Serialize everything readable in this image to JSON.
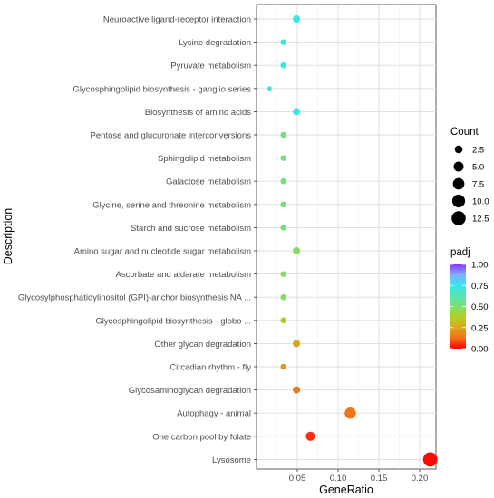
{
  "chart_data": {
    "type": "scatter",
    "xlabel": "GeneRatio",
    "ylabel": "Description",
    "xlim": [
      0.0,
      0.22
    ],
    "x_ticks": [
      "0.05",
      "0.10",
      "0.15",
      "0.20"
    ],
    "x_tick_values": [
      0.05,
      0.1,
      0.15,
      0.2
    ],
    "grid": true,
    "points": [
      {
        "label": "Neuroactive ligand-receptor interaction",
        "x": 0.049,
        "count": 2,
        "padj": 0.72
      },
      {
        "label": "Lysine degradation",
        "x": 0.033,
        "count": 1,
        "padj": 0.72
      },
      {
        "label": "Pyruvate metabolism",
        "x": 0.033,
        "count": 1,
        "padj": 0.72
      },
      {
        "label": "Glycosphingolipid biosynthesis - ganglio series",
        "x": 0.016,
        "count": 0.3,
        "padj": 0.72
      },
      {
        "label": "Biosynthesis of amino acids",
        "x": 0.049,
        "count": 2,
        "padj": 0.72
      },
      {
        "label": "Pentose and glucuronate interconversions",
        "x": 0.033,
        "count": 1,
        "padj": 0.52
      },
      {
        "label": "Sphingolipid metabolism",
        "x": 0.033,
        "count": 1,
        "padj": 0.52
      },
      {
        "label": "Galactose metabolism",
        "x": 0.033,
        "count": 1,
        "padj": 0.52
      },
      {
        "label": "Glycine, serine and threonine metabolism",
        "x": 0.033,
        "count": 1,
        "padj": 0.52
      },
      {
        "label": "Starch and sucrose metabolism",
        "x": 0.033,
        "count": 1,
        "padj": 0.52
      },
      {
        "label": "Amino sugar and nucleotide sugar metabolism",
        "x": 0.049,
        "count": 2,
        "padj": 0.48
      },
      {
        "label": "Ascorbate and aldarate metabolism",
        "x": 0.033,
        "count": 1,
        "padj": 0.48
      },
      {
        "label": "Glycosylphosphatidylinositol (GPI)-anchor biosynthesis NA ...",
        "x": 0.033,
        "count": 1,
        "padj": 0.48
      },
      {
        "label": "Glycosphingolipid biosynthesis - globo ...",
        "x": 0.033,
        "count": 1,
        "padj": 0.34
      },
      {
        "label": "Other glycan degradation",
        "x": 0.049,
        "count": 2,
        "padj": 0.24
      },
      {
        "label": "Circadian rhythm - fly",
        "x": 0.033,
        "count": 1,
        "padj": 0.22
      },
      {
        "label": "Glycosaminoglycan degradation",
        "x": 0.049,
        "count": 2,
        "padj": 0.15
      },
      {
        "label": "Autophagy - animal",
        "x": 0.115,
        "count": 7,
        "padj": 0.14
      },
      {
        "label": "One carbon pool by folate",
        "x": 0.066,
        "count": 4,
        "padj": 0.05
      },
      {
        "label": "Lysosome",
        "x": 0.213,
        "count": 13,
        "padj": 0.01
      }
    ],
    "legend": {
      "size_title": "Count",
      "size_breaks": [
        {
          "label": "2.5",
          "value": 2.5
        },
        {
          "label": "5.0",
          "value": 5.0
        },
        {
          "label": "7.5",
          "value": 7.5
        },
        {
          "label": "10.0",
          "value": 10.0
        },
        {
          "label": "12.5",
          "value": 12.5
        }
      ],
      "color_title": "padj",
      "color_breaks": [
        {
          "label": "1.00",
          "value": 1.0
        },
        {
          "label": "0.75",
          "value": 0.75
        },
        {
          "label": "0.50",
          "value": 0.5
        },
        {
          "label": "0.25",
          "value": 0.25
        },
        {
          "label": "0.00",
          "value": 0.0
        }
      ],
      "color_scale": [
        {
          "stop": 0.0,
          "color": "#ff0000"
        },
        {
          "stop": 0.12,
          "color": "#f26b18"
        },
        {
          "stop": 0.25,
          "color": "#d9a91e"
        },
        {
          "stop": 0.375,
          "color": "#b4cf23"
        },
        {
          "stop": 0.5,
          "color": "#7de06f"
        },
        {
          "stop": 0.75,
          "color": "#34e8f0"
        },
        {
          "stop": 0.875,
          "color": "#7fb1ff"
        },
        {
          "stop": 1.0,
          "color": "#8a38ff"
        }
      ],
      "placement": "right"
    }
  }
}
